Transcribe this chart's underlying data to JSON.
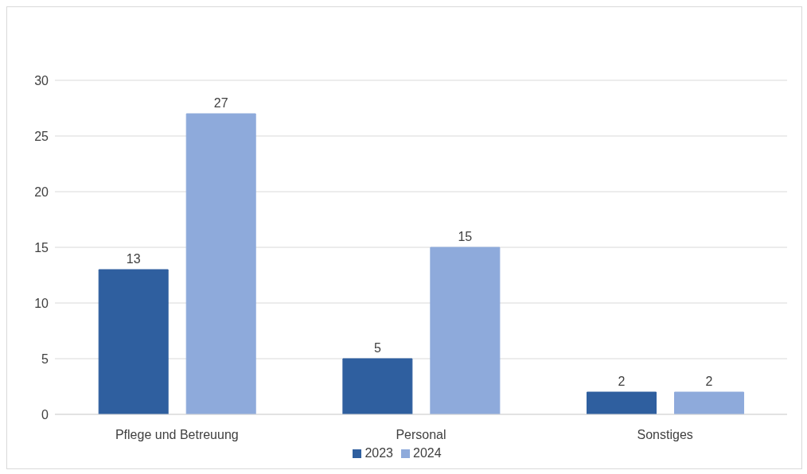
{
  "chart_data": {
    "type": "bar",
    "categories": [
      "Pflege und Betreuung",
      "Personal",
      "Sonstiges"
    ],
    "series": [
      {
        "name": "2023",
        "color": "#2f5f9f",
        "values": [
          13,
          5,
          2
        ]
      },
      {
        "name": "2024",
        "color": "#8eaadb",
        "values": [
          27,
          15,
          2
        ]
      }
    ],
    "ylim": [
      0,
      30
    ],
    "yticks": [
      0,
      5,
      10,
      15,
      20,
      25,
      30
    ],
    "grid": "y",
    "legend": "bottom",
    "data_labels": true
  }
}
